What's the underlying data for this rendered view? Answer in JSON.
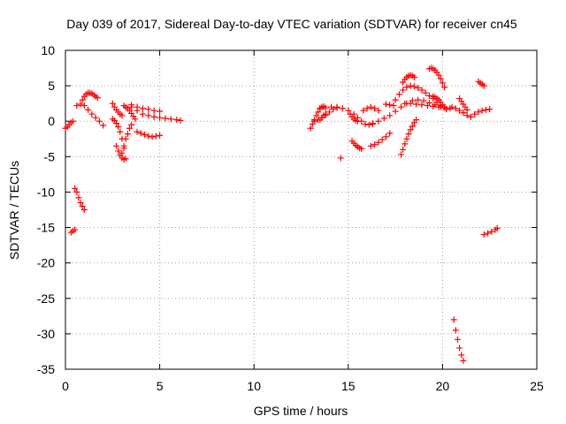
{
  "chart_data": {
    "type": "scatter",
    "title": "Day 039 of 2017, Sidereal Day-to-day VTEC variation (SDTVAR) for receiver cn45",
    "xlabel": "GPS time / hours",
    "ylabel": "SDTVAR / TECUs",
    "xlim": [
      0,
      25
    ],
    "ylim": [
      -35,
      10
    ],
    "x_ticks": [
      0,
      5,
      10,
      15,
      20,
      25
    ],
    "y_ticks": [
      10,
      5,
      0,
      -5,
      -10,
      -15,
      -20,
      -25,
      -30,
      -35
    ],
    "grid": true,
    "marker": "plus",
    "color": "#ff0000",
    "segments": [
      {
        "x": [
          0.0,
          0.1,
          0.2,
          0.3,
          0.4
        ],
        "y": [
          -1.0,
          -0.8,
          -0.5,
          -0.2,
          0.0
        ]
      },
      {
        "x": [
          0.3,
          0.4,
          0.5
        ],
        "y": [
          -15.7,
          -15.5,
          -15.3
        ]
      },
      {
        "x": [
          0.5,
          0.6,
          0.7,
          0.8,
          0.9,
          1.0
        ],
        "y": [
          -9.5,
          -10.0,
          -10.8,
          -11.5,
          -12.0,
          -12.5
        ]
      },
      {
        "x": [
          0.6,
          0.8,
          1.0,
          1.2,
          1.4,
          1.6,
          1.8,
          2.0
        ],
        "y": [
          2.2,
          2.4,
          2.2,
          1.6,
          1.0,
          0.5,
          0.0,
          -0.6
        ]
      },
      {
        "x": [
          0.9,
          1.0,
          1.1,
          1.2,
          1.3,
          1.4,
          1.5,
          1.6,
          1.7
        ],
        "y": [
          3.0,
          3.5,
          3.8,
          4.0,
          4.0,
          3.9,
          3.7,
          3.5,
          3.3
        ]
      },
      {
        "x": [
          2.5,
          2.6,
          2.7,
          2.8,
          2.9,
          3.0
        ],
        "y": [
          2.5,
          2.0,
          1.6,
          1.3,
          1.0,
          0.8
        ]
      },
      {
        "x": [
          2.5,
          2.6,
          2.7,
          2.8,
          2.9,
          3.0,
          3.1,
          3.2
        ],
        "y": [
          0.3,
          0.1,
          -0.3,
          -0.8,
          -1.5,
          -2.5,
          -3.8,
          -5.3
        ]
      },
      {
        "x": [
          2.7,
          2.8,
          2.9,
          3.0,
          3.1
        ],
        "y": [
          -3.5,
          -4.2,
          -4.8,
          -5.2,
          -5.4
        ]
      },
      {
        "x": [
          3.0,
          3.1,
          3.2,
          3.3,
          3.4,
          3.5
        ],
        "y": [
          -4.5,
          -3.5,
          -2.5,
          -1.8,
          -1.0,
          -0.5
        ]
      },
      {
        "x": [
          3.1,
          3.2,
          3.3,
          3.4,
          3.5,
          3.6,
          3.7
        ],
        "y": [
          2.2,
          2.0,
          1.8,
          1.5,
          1.1,
          0.7,
          0.3
        ]
      },
      {
        "x": [
          3.5,
          3.8,
          4.1,
          4.4,
          4.7,
          5.0,
          5.3,
          5.6,
          5.9,
          6.1
        ],
        "y": [
          2.0,
          1.5,
          1.0,
          0.8,
          0.6,
          0.5,
          0.4,
          0.3,
          0.2,
          0.1
        ]
      },
      {
        "x": [
          3.5,
          3.8,
          4.1,
          4.4,
          4.7,
          5.0
        ],
        "y": [
          2.3,
          2.0,
          1.8,
          1.7,
          1.5,
          1.4
        ]
      },
      {
        "x": [
          3.8,
          4.0,
          4.2,
          4.4,
          4.6,
          4.8,
          5.0
        ],
        "y": [
          -1.5,
          -1.7,
          -1.9,
          -2.1,
          -2.2,
          -2.1,
          -2.0
        ]
      },
      {
        "x": [
          13.0,
          13.1,
          13.2,
          13.3,
          13.4,
          13.5,
          13.6,
          13.7
        ],
        "y": [
          -1.0,
          -0.4,
          0.2,
          0.8,
          1.3,
          1.8,
          2.0,
          2.1
        ]
      },
      {
        "x": [
          13.2,
          13.4,
          13.6,
          13.8,
          14.0,
          14.2,
          14.4
        ],
        "y": [
          0.0,
          0.2,
          0.5,
          0.9,
          1.3,
          1.7,
          2.0
        ]
      },
      {
        "x": [
          13.5,
          13.8,
          14.1,
          14.4,
          14.7
        ],
        "y": [
          1.8,
          1.9,
          2.0,
          1.9,
          1.8
        ]
      },
      {
        "x": [
          13.5,
          13.6,
          13.7,
          13.8
        ],
        "y": [
          0.2,
          0.5,
          0.8,
          1.0
        ]
      },
      {
        "x": [
          14.6
        ],
        "y": [
          -5.2
        ]
      },
      {
        "x": [
          15.0,
          15.1,
          15.2,
          15.3,
          15.4,
          15.5
        ],
        "y": [
          1.5,
          1.0,
          0.6,
          0.3,
          0.1,
          0.0
        ]
      },
      {
        "x": [
          15.2,
          15.3,
          15.4,
          15.5,
          15.6,
          15.7
        ],
        "y": [
          -2.8,
          -3.1,
          -3.4,
          -3.6,
          -3.8,
          -3.9
        ]
      },
      {
        "x": [
          15.3,
          15.5,
          15.7,
          15.9,
          16.1,
          16.3
        ],
        "y": [
          1.0,
          0.5,
          0.0,
          -0.4,
          -0.5,
          -0.4
        ]
      },
      {
        "x": [
          15.8,
          16.0,
          16.2,
          16.4,
          16.6
        ],
        "y": [
          1.5,
          1.8,
          2.0,
          1.8,
          1.5
        ]
      },
      {
        "x": [
          16.3,
          16.6,
          16.9,
          17.2,
          17.5,
          17.8,
          18.1,
          18.4,
          18.7,
          19.0,
          19.3,
          19.6,
          19.9,
          20.2
        ],
        "y": [
          -0.3,
          0.0,
          0.4,
          0.8,
          1.4,
          2.0,
          2.5,
          2.9,
          3.0,
          2.9,
          2.6,
          2.3,
          2.0,
          1.7
        ]
      },
      {
        "x": [
          16.2,
          16.4,
          16.6,
          16.8,
          17.0,
          17.2
        ],
        "y": [
          -3.5,
          -3.3,
          -3.0,
          -2.6,
          -2.2,
          -1.7
        ]
      },
      {
        "x": [
          17.0,
          17.2,
          17.4
        ],
        "y": [
          2.4,
          2.3,
          2.2
        ]
      },
      {
        "x": [
          17.5,
          17.7,
          17.9,
          18.1,
          18.3,
          18.5,
          18.7,
          18.9,
          19.1,
          19.3,
          19.5,
          19.7,
          19.9
        ],
        "y": [
          3.0,
          3.8,
          4.4,
          4.8,
          5.0,
          4.9,
          4.7,
          4.4,
          4.0,
          3.6,
          3.2,
          2.7,
          2.2
        ]
      },
      {
        "x": [
          17.9,
          18.0,
          18.1,
          18.2,
          18.3,
          18.4,
          18.5
        ],
        "y": [
          5.5,
          5.9,
          6.2,
          6.4,
          6.5,
          6.4,
          6.2
        ]
      },
      {
        "x": [
          17.8,
          17.9,
          18.0,
          18.1,
          18.2,
          18.3,
          18.4,
          18.5,
          18.6
        ],
        "y": [
          -4.7,
          -4.0,
          -3.2,
          -2.5,
          -1.8,
          -1.2,
          -0.7,
          -0.2,
          0.2
        ]
      },
      {
        "x": [
          18.0,
          18.3,
          18.6,
          18.9,
          19.2,
          19.5,
          19.8,
          20.1,
          20.4
        ],
        "y": [
          2.5,
          2.5,
          2.4,
          2.3,
          2.2,
          2.1,
          2.0,
          1.9,
          1.8
        ]
      },
      {
        "x": [
          19.3,
          19.4,
          19.5,
          19.6,
          19.7,
          19.8,
          19.9,
          20.0,
          20.1
        ],
        "y": [
          7.4,
          7.5,
          7.4,
          7.2,
          6.9,
          6.5,
          6.0,
          5.4,
          4.8
        ]
      },
      {
        "x": [
          19.5,
          19.6,
          19.7,
          19.8,
          19.9,
          20.0,
          20.1,
          20.2
        ],
        "y": [
          3.5,
          3.4,
          3.2,
          3.0,
          2.7,
          2.3,
          2.0,
          1.7
        ]
      },
      {
        "x": [
          20.5,
          20.7,
          20.9,
          21.1,
          21.3,
          21.5,
          21.7,
          21.9,
          22.1,
          22.3,
          22.5
        ],
        "y": [
          2.0,
          1.8,
          1.5,
          1.2,
          0.8,
          0.6,
          1.0,
          1.3,
          1.5,
          1.6,
          1.7
        ]
      },
      {
        "x": [
          20.6,
          20.7,
          20.8,
          20.9,
          21.0,
          21.1
        ],
        "y": [
          -28.0,
          -29.5,
          -30.8,
          -32.0,
          -33.0,
          -33.8
        ]
      },
      {
        "x": [
          20.9,
          21.0,
          21.1,
          21.2,
          21.3
        ],
        "y": [
          3.2,
          2.8,
          2.4,
          2.0,
          1.6
        ]
      },
      {
        "x": [
          21.9,
          22.0,
          22.1,
          22.2
        ],
        "y": [
          5.6,
          5.4,
          5.2,
          5.0
        ]
      },
      {
        "x": [
          22.2,
          22.4,
          22.6,
          22.8,
          22.9
        ],
        "y": [
          -16.0,
          -15.8,
          -15.6,
          -15.3,
          -15.1
        ]
      }
    ]
  }
}
